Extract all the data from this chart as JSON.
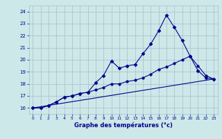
{
  "xlabel": "Graphe des températures (°c)",
  "ylabel": "",
  "background_color": "#cce8e8",
  "grid_color": "#b0b8cc",
  "line_color": "#00008b",
  "xlim": [
    -0.5,
    23.5
  ],
  "ylim": [
    15.5,
    24.5
  ],
  "xticks": [
    0,
    1,
    2,
    3,
    4,
    5,
    6,
    7,
    8,
    9,
    10,
    11,
    12,
    13,
    14,
    15,
    16,
    17,
    18,
    19,
    20,
    21,
    22,
    23
  ],
  "yticks": [
    16,
    17,
    18,
    19,
    20,
    21,
    22,
    23,
    24
  ],
  "line1_x": [
    0,
    1,
    2,
    3,
    4,
    5,
    6,
    7,
    8,
    9,
    10,
    11,
    12,
    13,
    14,
    15,
    16,
    17,
    18,
    19,
    20,
    21,
    22,
    23
  ],
  "line1_y": [
    16.0,
    16.0,
    16.2,
    16.5,
    16.9,
    17.0,
    17.2,
    17.3,
    18.1,
    18.7,
    19.9,
    19.3,
    19.5,
    19.6,
    20.5,
    21.3,
    22.4,
    23.7,
    22.7,
    21.6,
    20.3,
    19.1,
    18.5,
    18.4
  ],
  "line2_x": [
    0,
    1,
    2,
    3,
    4,
    5,
    6,
    7,
    8,
    9,
    10,
    11,
    12,
    13,
    14,
    15,
    16,
    17,
    18,
    19,
    20,
    21,
    22,
    23
  ],
  "line2_y": [
    16.0,
    16.0,
    16.2,
    16.5,
    16.9,
    17.0,
    17.2,
    17.3,
    17.5,
    17.7,
    18.0,
    18.0,
    18.2,
    18.3,
    18.5,
    18.8,
    19.2,
    19.4,
    19.7,
    20.0,
    20.3,
    19.5,
    18.7,
    18.4
  ],
  "line3_x": [
    0,
    23
  ],
  "line3_y": [
    16.0,
    18.4
  ],
  "marker_size": 2.5
}
